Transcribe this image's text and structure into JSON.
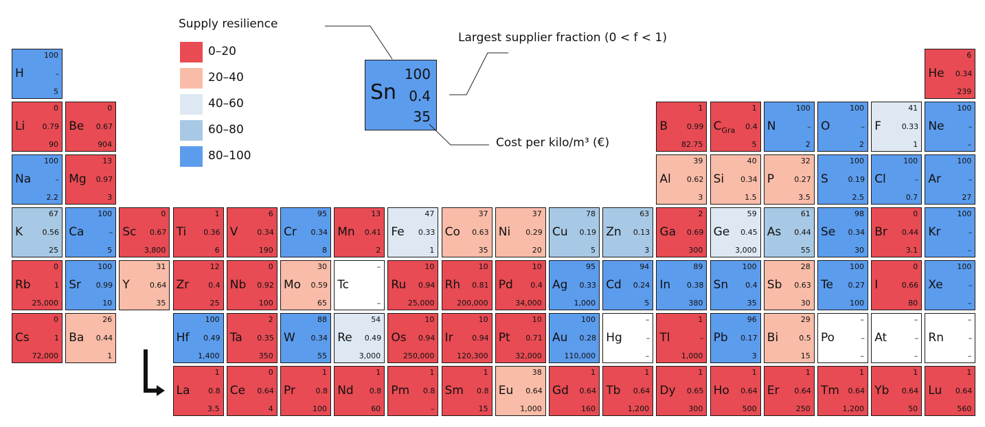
{
  "colors": {
    "r0_20": "#e84b53",
    "r20_40": "#f9bca8",
    "r40_60": "#dde8f3",
    "r60_80": "#a8c9e5",
    "r80_100": "#5c9ced",
    "none": "#ffffff"
  },
  "legend": {
    "title": "Supply resilience",
    "items": [
      {
        "label": "0–20",
        "color": "#e84b53"
      },
      {
        "label": "20–40",
        "color": "#f9bca8"
      },
      {
        "label": "40–60",
        "color": "#dde8f3"
      },
      {
        "label": "60–80",
        "color": "#a8c9e5"
      },
      {
        "label": "80–100",
        "color": "#5c9ced"
      }
    ]
  },
  "key": {
    "symbol": "Sn",
    "resilience": "100",
    "fraction": "0.4",
    "cost": "35",
    "fraction_label": "Largest supplier fraction (0 < f < 1)",
    "cost_label": "Cost per kilo/m³ (€)"
  },
  "elements": [
    {
      "symbol": "H",
      "resilience": "100",
      "fraction": "–",
      "cost": "5",
      "band": "r80_100",
      "row": 0,
      "col": 0
    },
    {
      "symbol": "He",
      "resilience": "6",
      "fraction": "0.34",
      "cost": "239",
      "band": "r0_20",
      "row": 0,
      "col": 17
    },
    {
      "symbol": "Li",
      "resilience": "0",
      "fraction": "0.79",
      "cost": "90",
      "band": "r0_20",
      "row": 1,
      "col": 0
    },
    {
      "symbol": "Be",
      "resilience": "0",
      "fraction": "0.67",
      "cost": "904",
      "band": "r0_20",
      "row": 1,
      "col": 1
    },
    {
      "symbol": "B",
      "resilience": "1",
      "fraction": "0.99",
      "cost": "82.75",
      "band": "r0_20",
      "row": 1,
      "col": 12
    },
    {
      "symbol": "C",
      "sub": "Gra",
      "resilience": "1",
      "fraction": "0.4",
      "cost": "5",
      "band": "r0_20",
      "row": 1,
      "col": 13
    },
    {
      "symbol": "N",
      "resilience": "100",
      "fraction": "–",
      "cost": "2",
      "band": "r80_100",
      "row": 1,
      "col": 14
    },
    {
      "symbol": "O",
      "resilience": "100",
      "fraction": "–",
      "cost": "2",
      "band": "r80_100",
      "row": 1,
      "col": 15
    },
    {
      "symbol": "F",
      "resilience": "41",
      "fraction": "0.33",
      "cost": "1",
      "band": "r40_60",
      "row": 1,
      "col": 16
    },
    {
      "symbol": "Ne",
      "resilience": "100",
      "fraction": "–",
      "cost": "–",
      "band": "r80_100",
      "row": 1,
      "col": 17
    },
    {
      "symbol": "Na",
      "resilience": "100",
      "fraction": "–",
      "cost": "2.2",
      "band": "r80_100",
      "row": 2,
      "col": 0
    },
    {
      "symbol": "Mg",
      "resilience": "13",
      "fraction": "0.97",
      "cost": "3",
      "band": "r0_20",
      "row": 2,
      "col": 1
    },
    {
      "symbol": "Al",
      "resilience": "39",
      "fraction": "0.62",
      "cost": "3",
      "band": "r20_40",
      "row": 2,
      "col": 12
    },
    {
      "symbol": "Si",
      "resilience": "40",
      "fraction": "0.34",
      "cost": "1.5",
      "band": "r20_40",
      "row": 2,
      "col": 13
    },
    {
      "symbol": "P",
      "resilience": "32",
      "fraction": "0.27",
      "cost": "3.5",
      "band": "r20_40",
      "row": 2,
      "col": 14
    },
    {
      "symbol": "S",
      "resilience": "100",
      "fraction": "0.19",
      "cost": "2.5",
      "band": "r80_100",
      "row": 2,
      "col": 15
    },
    {
      "symbol": "Cl",
      "resilience": "100",
      "fraction": "–",
      "cost": "0.7",
      "band": "r80_100",
      "row": 2,
      "col": 16
    },
    {
      "symbol": "Ar",
      "resilience": "100",
      "fraction": "–",
      "cost": "27",
      "band": "r80_100",
      "row": 2,
      "col": 17
    },
    {
      "symbol": "K",
      "resilience": "67",
      "fraction": "0.56",
      "cost": "25",
      "band": "r60_80",
      "row": 3,
      "col": 0
    },
    {
      "symbol": "Ca",
      "resilience": "100",
      "fraction": "–",
      "cost": "5",
      "band": "r80_100",
      "row": 3,
      "col": 1
    },
    {
      "symbol": "Sc",
      "resilience": "0",
      "fraction": "0.67",
      "cost": "3,800",
      "band": "r0_20",
      "row": 3,
      "col": 2
    },
    {
      "symbol": "Ti",
      "resilience": "1",
      "fraction": "0.36",
      "cost": "6",
      "band": "r0_20",
      "row": 3,
      "col": 3
    },
    {
      "symbol": "V",
      "resilience": "6",
      "fraction": "0.34",
      "cost": "190",
      "band": "r0_20",
      "row": 3,
      "col": 4
    },
    {
      "symbol": "Cr",
      "resilience": "95",
      "fraction": "0.34",
      "cost": "8",
      "band": "r80_100",
      "row": 3,
      "col": 5
    },
    {
      "symbol": "Mn",
      "resilience": "13",
      "fraction": "0.41",
      "cost": "2",
      "band": "r0_20",
      "row": 3,
      "col": 6
    },
    {
      "symbol": "Fe",
      "resilience": "47",
      "fraction": "0.33",
      "cost": "1",
      "band": "r40_60",
      "row": 3,
      "col": 7
    },
    {
      "symbol": "Co",
      "resilience": "37",
      "fraction": "0.63",
      "cost": "35",
      "band": "r20_40",
      "row": 3,
      "col": 8
    },
    {
      "symbol": "Ni",
      "resilience": "37",
      "fraction": "0.29",
      "cost": "20",
      "band": "r20_40",
      "row": 3,
      "col": 9
    },
    {
      "symbol": "Cu",
      "resilience": "78",
      "fraction": "0.19",
      "cost": "5",
      "band": "r60_80",
      "row": 3,
      "col": 10
    },
    {
      "symbol": "Zn",
      "resilience": "63",
      "fraction": "0.13",
      "cost": "3",
      "band": "r60_80",
      "row": 3,
      "col": 11
    },
    {
      "symbol": "Ga",
      "resilience": "2",
      "fraction": "0.69",
      "cost": "300",
      "band": "r0_20",
      "row": 3,
      "col": 12
    },
    {
      "symbol": "Ge",
      "resilience": "59",
      "fraction": "0.45",
      "cost": "3,000",
      "band": "r40_60",
      "row": 3,
      "col": 13
    },
    {
      "symbol": "As",
      "resilience": "61",
      "fraction": "0.44",
      "cost": "55",
      "band": "r60_80",
      "row": 3,
      "col": 14
    },
    {
      "symbol": "Se",
      "resilience": "98",
      "fraction": "0.34",
      "cost": "30",
      "band": "r80_100",
      "row": 3,
      "col": 15
    },
    {
      "symbol": "Br",
      "resilience": "0",
      "fraction": "0.44",
      "cost": "3.1",
      "band": "r0_20",
      "row": 3,
      "col": 16
    },
    {
      "symbol": "Kr",
      "resilience": "100",
      "fraction": "–",
      "cost": "–",
      "band": "r80_100",
      "row": 3,
      "col": 17
    },
    {
      "symbol": "Rb",
      "resilience": "0",
      "fraction": "1",
      "cost": "25,000",
      "band": "r0_20",
      "row": 4,
      "col": 0
    },
    {
      "symbol": "Sr",
      "resilience": "100",
      "fraction": "0.99",
      "cost": "10",
      "band": "r80_100",
      "row": 4,
      "col": 1
    },
    {
      "symbol": "Y",
      "resilience": "31",
      "fraction": "0.64",
      "cost": "35",
      "band": "r20_40",
      "row": 4,
      "col": 2
    },
    {
      "symbol": "Zr",
      "resilience": "12",
      "fraction": "0.4",
      "cost": "25",
      "band": "r0_20",
      "row": 4,
      "col": 3
    },
    {
      "symbol": "Nb",
      "resilience": "0",
      "fraction": "0.92",
      "cost": "100",
      "band": "r0_20",
      "row": 4,
      "col": 4
    },
    {
      "symbol": "Mo",
      "resilience": "30",
      "fraction": "0.59",
      "cost": "65",
      "band": "r20_40",
      "row": 4,
      "col": 5
    },
    {
      "symbol": "Tc",
      "resilience": "–",
      "fraction": "",
      "cost": "–",
      "band": "none",
      "row": 4,
      "col": 6
    },
    {
      "symbol": "Ru",
      "resilience": "10",
      "fraction": "0.94",
      "cost": "25,000",
      "band": "r0_20",
      "row": 4,
      "col": 7
    },
    {
      "symbol": "Rh",
      "resilience": "10",
      "fraction": "0.81",
      "cost": "200,000",
      "band": "r0_20",
      "row": 4,
      "col": 8
    },
    {
      "symbol": "Pd",
      "resilience": "10",
      "fraction": "0.4",
      "cost": "34,000",
      "band": "r0_20",
      "row": 4,
      "col": 9
    },
    {
      "symbol": "Ag",
      "resilience": "95",
      "fraction": "0.33",
      "cost": "1,000",
      "band": "r80_100",
      "row": 4,
      "col": 10
    },
    {
      "symbol": "Cd",
      "resilience": "94",
      "fraction": "0.24",
      "cost": "5",
      "band": "r80_100",
      "row": 4,
      "col": 11
    },
    {
      "symbol": "In",
      "resilience": "89",
      "fraction": "0.38",
      "cost": "380",
      "band": "r80_100",
      "row": 4,
      "col": 12
    },
    {
      "symbol": "Sn",
      "resilience": "100",
      "fraction": "0.4",
      "cost": "35",
      "band": "r80_100",
      "row": 4,
      "col": 13
    },
    {
      "symbol": "Sb",
      "resilience": "28",
      "fraction": "0.63",
      "cost": "30",
      "band": "r20_40",
      "row": 4,
      "col": 14
    },
    {
      "symbol": "Te",
      "resilience": "100",
      "fraction": "0.27",
      "cost": "100",
      "band": "r80_100",
      "row": 4,
      "col": 15
    },
    {
      "symbol": "I",
      "resilience": "0",
      "fraction": "0.66",
      "cost": "80",
      "band": "r0_20",
      "row": 4,
      "col": 16
    },
    {
      "symbol": "Xe",
      "resilience": "100",
      "fraction": "–",
      "cost": "–",
      "band": "r80_100",
      "row": 4,
      "col": 17
    },
    {
      "symbol": "Cs",
      "resilience": "0",
      "fraction": "1",
      "cost": "72,000",
      "band": "r0_20",
      "row": 5,
      "col": 0
    },
    {
      "symbol": "Ba",
      "resilience": "26",
      "fraction": "0.44",
      "cost": "1",
      "band": "r20_40",
      "row": 5,
      "col": 1
    },
    {
      "symbol": "Hf",
      "resilience": "100",
      "fraction": "0.49",
      "cost": "1,400",
      "band": "r80_100",
      "row": 5,
      "col": 3
    },
    {
      "symbol": "Ta",
      "resilience": "2",
      "fraction": "0.35",
      "cost": "350",
      "band": "r0_20",
      "row": 5,
      "col": 4
    },
    {
      "symbol": "W",
      "resilience": "88",
      "fraction": "0.34",
      "cost": "55",
      "band": "r80_100",
      "row": 5,
      "col": 5
    },
    {
      "symbol": "Re",
      "resilience": "54",
      "fraction": "0.49",
      "cost": "3,000",
      "band": "r40_60",
      "row": 5,
      "col": 6
    },
    {
      "symbol": "Os",
      "resilience": "10",
      "fraction": "0.94",
      "cost": "250,000",
      "band": "r0_20",
      "row": 5,
      "col": 7
    },
    {
      "symbol": "Ir",
      "resilience": "10",
      "fraction": "0.94",
      "cost": "120,300",
      "band": "r0_20",
      "row": 5,
      "col": 8
    },
    {
      "symbol": "Pt",
      "resilience": "10",
      "fraction": "0.71",
      "cost": "32,000",
      "band": "r0_20",
      "row": 5,
      "col": 9
    },
    {
      "symbol": "Au",
      "resilience": "100",
      "fraction": "0.28",
      "cost": "110,000",
      "band": "r80_100",
      "row": 5,
      "col": 10
    },
    {
      "symbol": "Hg",
      "resilience": "–",
      "fraction": "–",
      "cost": "–",
      "band": "none",
      "row": 5,
      "col": 11
    },
    {
      "symbol": "Tl",
      "resilience": "1",
      "fraction": "–",
      "cost": "1,000",
      "band": "r0_20",
      "row": 5,
      "col": 12
    },
    {
      "symbol": "Pb",
      "resilience": "96",
      "fraction": "0.17",
      "cost": "3",
      "band": "r80_100",
      "row": 5,
      "col": 13
    },
    {
      "symbol": "Bi",
      "resilience": "29",
      "fraction": "0.5",
      "cost": "15",
      "band": "r20_40",
      "row": 5,
      "col": 14
    },
    {
      "symbol": "Po",
      "resilience": "–",
      "fraction": "–",
      "cost": "–",
      "band": "none",
      "row": 5,
      "col": 15
    },
    {
      "symbol": "At",
      "resilience": "–",
      "fraction": "–",
      "cost": "–",
      "band": "none",
      "row": 5,
      "col": 16
    },
    {
      "symbol": "Rn",
      "resilience": "–",
      "fraction": "–",
      "cost": "–",
      "band": "none",
      "row": 5,
      "col": 17
    },
    {
      "symbol": "La",
      "resilience": "1",
      "fraction": "0.8",
      "cost": "3.5",
      "band": "r0_20",
      "row": 6,
      "col": 3
    },
    {
      "symbol": "Ce",
      "resilience": "0",
      "fraction": "0.64",
      "cost": "4",
      "band": "r0_20",
      "row": 6,
      "col": 4
    },
    {
      "symbol": "Pr",
      "resilience": "1",
      "fraction": "0.8",
      "cost": "100",
      "band": "r0_20",
      "row": 6,
      "col": 5
    },
    {
      "symbol": "Nd",
      "resilience": "1",
      "fraction": "0.8",
      "cost": "60",
      "band": "r0_20",
      "row": 6,
      "col": 6
    },
    {
      "symbol": "Pm",
      "resilience": "1",
      "fraction": "0.8",
      "cost": "–",
      "band": "r0_20",
      "row": 6,
      "col": 7
    },
    {
      "symbol": "Sm",
      "resilience": "1",
      "fraction": "0.8",
      "cost": "15",
      "band": "r0_20",
      "row": 6,
      "col": 8
    },
    {
      "symbol": "Eu",
      "resilience": "38",
      "fraction": "0.64",
      "cost": "1,000",
      "band": "r20_40",
      "row": 6,
      "col": 9
    },
    {
      "symbol": "Gd",
      "resilience": "1",
      "fraction": "0.64",
      "cost": "160",
      "band": "r0_20",
      "row": 6,
      "col": 10
    },
    {
      "symbol": "Tb",
      "resilience": "1",
      "fraction": "0.64",
      "cost": "1,200",
      "band": "r0_20",
      "row": 6,
      "col": 11
    },
    {
      "symbol": "Dy",
      "resilience": "1",
      "fraction": "0.65",
      "cost": "300",
      "band": "r0_20",
      "row": 6,
      "col": 12
    },
    {
      "symbol": "Ho",
      "resilience": "1",
      "fraction": "0.64",
      "cost": "500",
      "band": "r0_20",
      "row": 6,
      "col": 13
    },
    {
      "symbol": "Er",
      "resilience": "1",
      "fraction": "0.64",
      "cost": "250",
      "band": "r0_20",
      "row": 6,
      "col": 14
    },
    {
      "symbol": "Tm",
      "resilience": "1",
      "fraction": "0.64",
      "cost": "1,200",
      "band": "r0_20",
      "row": 6,
      "col": 15
    },
    {
      "symbol": "Yb",
      "resilience": "1",
      "fraction": "0.64",
      "cost": "50",
      "band": "r0_20",
      "row": 6,
      "col": 16
    },
    {
      "symbol": "Lu",
      "resilience": "1",
      "fraction": "0.64",
      "cost": "560",
      "band": "r0_20",
      "row": 6,
      "col": 17
    }
  ]
}
